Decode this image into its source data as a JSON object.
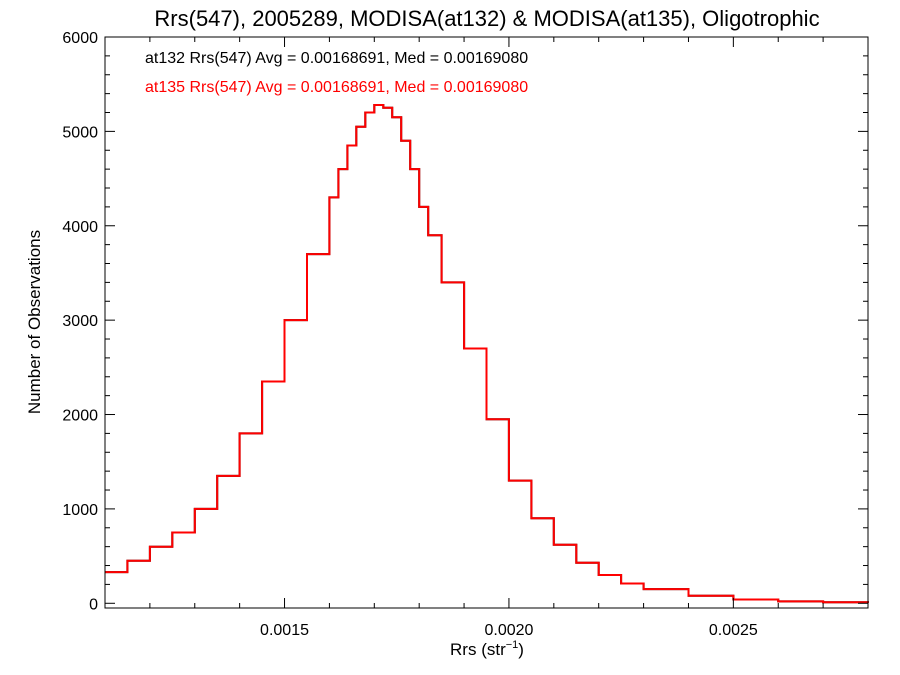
{
  "chart_data": {
    "type": "line",
    "title": "Rrs(547), 2005289, MODISA(at132) & MODISA(at135), Oligotrophic",
    "xlabel": "Rrs (str",
    "xlabel_sup": "−1",
    "xlabel_suffix": ")",
    "ylabel": "Number of Observations",
    "xlim": [
      0.0011,
      0.0028
    ],
    "ylim": [
      -50,
      6000
    ],
    "grid": false,
    "step": true,
    "x_ticks": [
      {
        "value": 0.0015,
        "label": "0.0015"
      },
      {
        "value": 0.002,
        "label": "0.0020"
      },
      {
        "value": 0.0025,
        "label": "0.0025"
      }
    ],
    "x_minor_ticks": [
      0.0012,
      0.0013,
      0.0014,
      0.0016,
      0.0017,
      0.0018,
      0.0019,
      0.0021,
      0.0022,
      0.0023,
      0.0024,
      0.0026,
      0.0027
    ],
    "y_ticks": [
      {
        "value": 0,
        "label": "0"
      },
      {
        "value": 1000,
        "label": "1000"
      },
      {
        "value": 2000,
        "label": "2000"
      },
      {
        "value": 3000,
        "label": "3000"
      },
      {
        "value": 4000,
        "label": "4000"
      },
      {
        "value": 5000,
        "label": "5000"
      },
      {
        "value": 6000,
        "label": "6000"
      }
    ],
    "y_minor_ticks": [
      200,
      400,
      600,
      800,
      1200,
      1400,
      1600,
      1800,
      2200,
      2400,
      2600,
      2800,
      3200,
      3400,
      3600,
      3800,
      4200,
      4400,
      4600,
      4800,
      5200,
      5400,
      5600,
      5800
    ],
    "annotations": [
      {
        "text": "at132 Rrs(547) Avg = 0.00168691, Med = 0.00169080",
        "color": "#000000"
      },
      {
        "text": "at135 Rrs(547) Avg = 0.00168691, Med = 0.00169080",
        "color": "#ff0000"
      }
    ],
    "series": [
      {
        "color": "#000000",
        "x": [
          0.0011,
          0.00115,
          0.0012,
          0.00125,
          0.0013,
          0.00135,
          0.0014,
          0.00145,
          0.0015,
          0.00155,
          0.0016,
          0.00162,
          0.00164,
          0.00166,
          0.00168,
          0.0017,
          0.00172,
          0.00174,
          0.00176,
          0.00178,
          0.0018,
          0.00182,
          0.00185,
          0.0019,
          0.00195,
          0.002,
          0.00205,
          0.0021,
          0.00215,
          0.0022,
          0.00225,
          0.0023,
          0.0024,
          0.0025,
          0.0026,
          0.0027,
          0.0028
        ],
        "y": [
          330,
          450,
          600,
          750,
          1000,
          1350,
          1800,
          2350,
          3000,
          3700,
          4300,
          4600,
          4850,
          5050,
          5200,
          5280,
          5250,
          5150,
          4900,
          4600,
          4200,
          3900,
          3400,
          2700,
          1950,
          1300,
          900,
          620,
          430,
          300,
          210,
          150,
          80,
          40,
          20,
          10,
          5
        ]
      },
      {
        "color": "#ff0000",
        "x": [
          0.0011,
          0.00115,
          0.0012,
          0.00125,
          0.0013,
          0.00135,
          0.0014,
          0.00145,
          0.0015,
          0.00155,
          0.0016,
          0.00162,
          0.00164,
          0.00166,
          0.00168,
          0.0017,
          0.00172,
          0.00174,
          0.00176,
          0.00178,
          0.0018,
          0.00182,
          0.00185,
          0.0019,
          0.00195,
          0.002,
          0.00205,
          0.0021,
          0.00215,
          0.0022,
          0.00225,
          0.0023,
          0.0024,
          0.0025,
          0.0026,
          0.0027,
          0.0028
        ],
        "y": [
          330,
          450,
          600,
          750,
          1000,
          1350,
          1800,
          2350,
          3000,
          3700,
          4300,
          4600,
          4850,
          5050,
          5200,
          5280,
          5250,
          5150,
          4900,
          4600,
          4200,
          3900,
          3400,
          2700,
          1950,
          1300,
          900,
          620,
          430,
          300,
          210,
          150,
          80,
          40,
          20,
          10,
          5
        ]
      }
    ]
  }
}
